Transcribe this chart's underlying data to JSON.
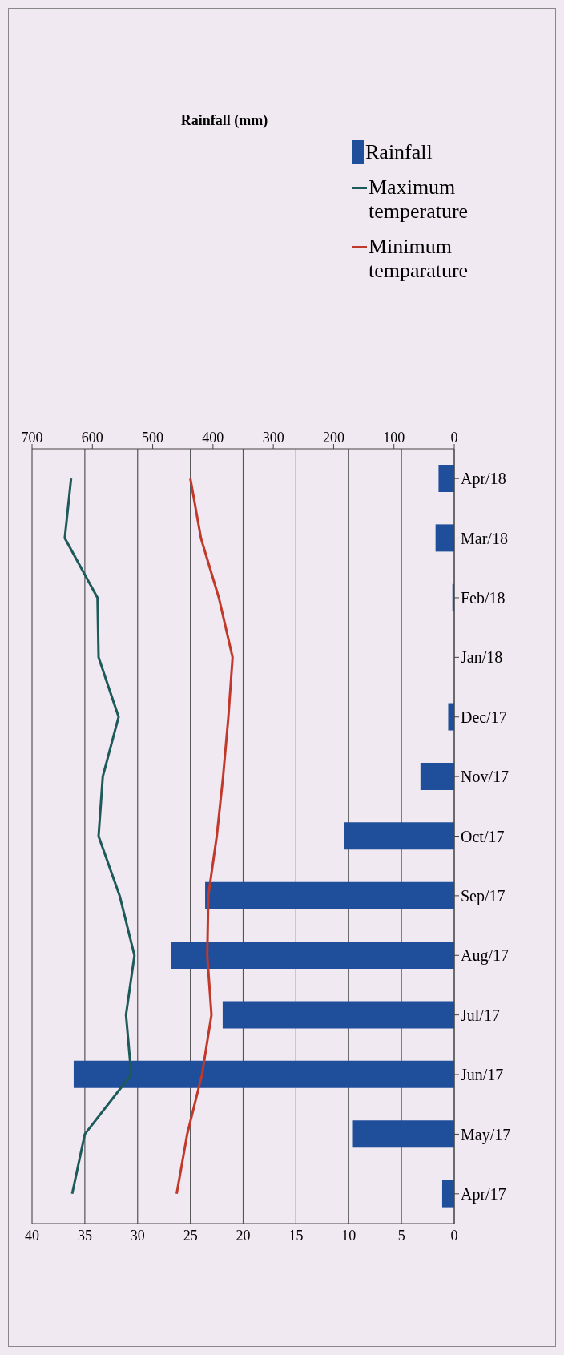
{
  "chart_data": {
    "type": "bar",
    "orientation": "horizontal",
    "categories": [
      "Apr/18",
      "Mar/18",
      "Feb/18",
      "Jan/18",
      "Dec/17",
      "Nov/17",
      "Oct/17",
      "Sep/17",
      "Aug/17",
      "Jul/17",
      "Jun/17",
      "May/17",
      "Apr/17"
    ],
    "series": [
      {
        "name": "Rainfall",
        "axis": "x2",
        "color": "#1f4e9a",
        "values": [
          26,
          31,
          3,
          0,
          10,
          56,
          182,
          413,
          470,
          384,
          631,
          168,
          20
        ]
      },
      {
        "name": "Maximum temperature",
        "type": "line",
        "color": "#1f5a5a",
        "values": [
          36.3,
          36.9,
          33.8,
          33.7,
          31.8,
          33.3,
          33.7,
          31.7,
          30.3,
          31.1,
          30.6,
          35.0,
          36.2
        ]
      },
      {
        "name": "Minimum temparature",
        "type": "line",
        "color": "#c0392b",
        "values": [
          25.0,
          24.0,
          22.3,
          21.0,
          21.4,
          21.9,
          22.5,
          23.3,
          23.4,
          23.0,
          23.9,
          25.3,
          26.3
        ]
      }
    ],
    "xlim": [
      40,
      0
    ],
    "xticks": [
      0,
      5,
      10,
      15,
      20,
      25,
      30,
      35,
      40
    ],
    "x2lim": [
      700,
      0
    ],
    "x2ticks": [
      0,
      100,
      200,
      300,
      400,
      500,
      600,
      700
    ],
    "x2label": "Rainfall (mm)",
    "grid": "x",
    "legend": "top right",
    "marker": "none",
    "line_style": "solid"
  }
}
